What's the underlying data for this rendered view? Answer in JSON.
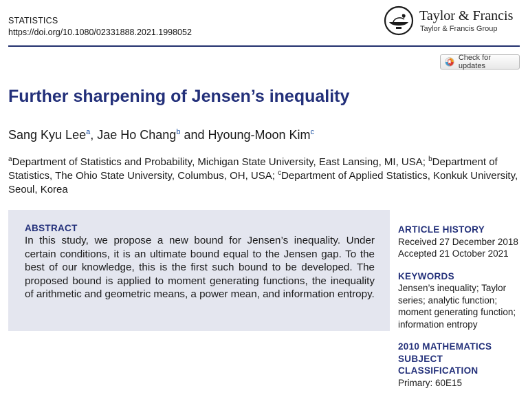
{
  "header": {
    "journal": "STATISTICS",
    "doi": "https://doi.org/10.1080/02331888.2021.1998052"
  },
  "publisher": {
    "name": "Taylor & Francis",
    "group": "Taylor & Francis Group"
  },
  "check_updates_label": "Check for updates",
  "title": "Further sharpening of Jensen’s inequality",
  "authors": [
    {
      "name": "Sang Kyu Lee",
      "sup": "a"
    },
    {
      "name": "Jae Ho Chang",
      "sup": "b"
    },
    {
      "name": "Hyoung-Moon Kim",
      "sup": "c"
    }
  ],
  "author_separators": [
    ", ",
    " and "
  ],
  "affiliations": [
    {
      "sup": "a",
      "text": "Department of Statistics and Probability, Michigan State University, East Lansing, MI, USA; "
    },
    {
      "sup": "b",
      "text": "Department of Statistics, The Ohio State University, Columbus, OH, USA; "
    },
    {
      "sup": "c",
      "text": "Department of Applied Statistics, Konkuk University, Seoul, Korea"
    }
  ],
  "abstract": {
    "heading": "ABSTRACT",
    "text": "In this study, we propose a new bound for Jensen’s inequality. Under certain conditions, it is an ultimate bound equal to the Jensen gap. To the best of our knowledge, this is the first such bound to be developed. The proposed bound is applied to moment generating functions, the inequality of arithmetic and geometric means, a power mean, and information entropy."
  },
  "article_history": {
    "heading": "ARTICLE HISTORY",
    "received": "Received 27 December 2018",
    "accepted": "Accepted 21 October 2021"
  },
  "keywords": {
    "heading": "KEYWORDS",
    "text": "Jensen’s inequality; Taylor series; analytic function; moment generating function; information entropy"
  },
  "classification": {
    "heading": "2010 MATHEMATICS SUBJECT CLASSIFICATION",
    "primary": "Primary: 60E15"
  },
  "colors": {
    "accent": "#23307a",
    "abstract_bg": "#e4e6ef",
    "link": "#1a4fa0"
  }
}
